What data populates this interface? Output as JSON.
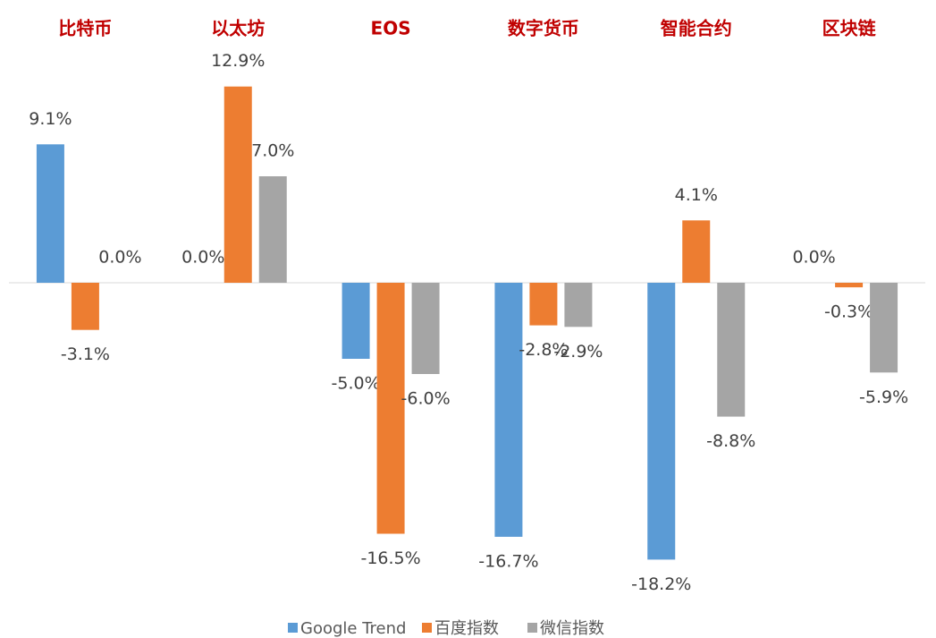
{
  "chart_data": {
    "type": "bar",
    "categories": [
      "比特币",
      "以太坊",
      "EOS",
      "数字货币",
      "智能合约",
      "区块链"
    ],
    "series": [
      {
        "name": "Google Trend",
        "color": "#5b9bd5",
        "values": [
          9.1,
          0.0,
          -5.0,
          -16.7,
          -18.2,
          0.0
        ],
        "value_labels": [
          "9.1%",
          "0.0%",
          "-5.0%",
          "-16.7%",
          "-18.2%",
          "0.0%"
        ]
      },
      {
        "name": "百度指数",
        "color": "#ed7d31",
        "values": [
          -3.1,
          12.9,
          -16.5,
          -2.8,
          4.1,
          -0.3
        ],
        "value_labels": [
          "-3.1%",
          "12.9%",
          "-16.5%",
          "-2.8%",
          "4.1%",
          "-0.3%"
        ]
      },
      {
        "name": "微信指数",
        "color": "#a5a5a5",
        "values": [
          0.0,
          7.0,
          -6.0,
          -2.9,
          -8.8,
          -5.9
        ],
        "value_labels": [
          "0.0%",
          "7.0%",
          "-6.0%",
          "-2.9%",
          "-8.8%",
          "-5.9%"
        ]
      }
    ]
  }
}
